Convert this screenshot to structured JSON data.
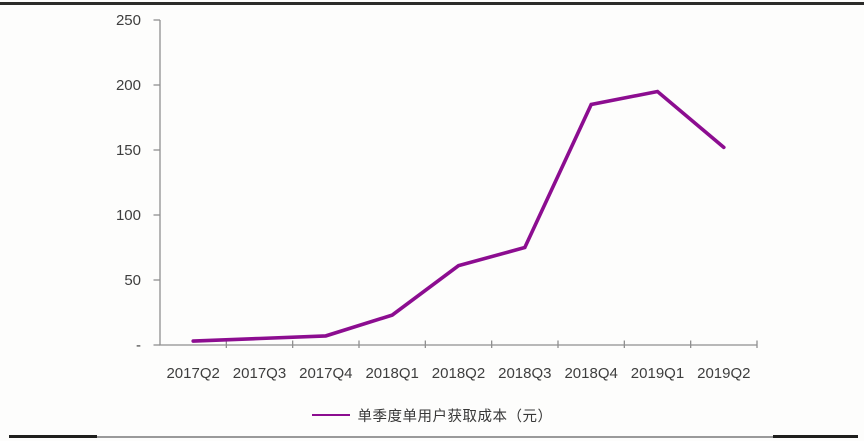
{
  "chart_data": {
    "type": "line",
    "title": "",
    "categories": [
      "2017Q2",
      "2017Q3",
      "2017Q4",
      "2018Q1",
      "2018Q2",
      "2018Q3",
      "2018Q4",
      "2019Q1",
      "2019Q2"
    ],
    "series": [
      {
        "name": "单季度单用户获取成本（元）",
        "color": "#8c0d90",
        "values": [
          3,
          5,
          7,
          23,
          61,
          75,
          185,
          195,
          152
        ]
      }
    ],
    "xlabel": "",
    "ylabel": "",
    "ylim": [
      0,
      250
    ],
    "ytick_interval": 50,
    "ytick_labels": [
      "-",
      "50",
      "100",
      "150",
      "200",
      "250"
    ],
    "legend_position": "bottom",
    "grid": false
  },
  "colors": {
    "line": "#8c0d90",
    "axis": "#8f8f8f",
    "text": "#3e3e3e",
    "rule_dark": "#1f1f1d",
    "rule_gray": "#9a9a9a",
    "background": "#fdfdfc"
  }
}
